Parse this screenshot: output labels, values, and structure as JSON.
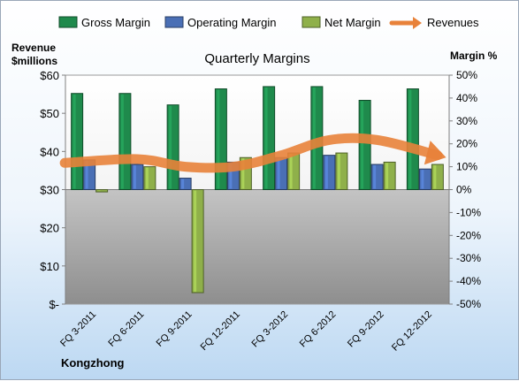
{
  "chart_data": {
    "type": "bar",
    "title": "Quarterly Margins",
    "company": "Kongzhong",
    "left_axis_label": [
      "Revenue",
      "$millions"
    ],
    "right_axis_label": "Margin %",
    "categories": [
      "FQ 3-2011",
      "FQ 6-2011",
      "FQ 9-2011",
      "FQ 12-2011",
      "FQ 3-2012",
      "FQ 6-2012",
      "FQ 9-2012",
      "FQ 12-2012"
    ],
    "left_ticks": [
      "$-",
      "$10",
      "$20",
      "$30",
      "$40",
      "$50",
      "$60"
    ],
    "right_ticks": [
      "-50%",
      "-40%",
      "-30%",
      "-20%",
      "-10%",
      "0%",
      "10%",
      "20%",
      "30%",
      "40%",
      "50%"
    ],
    "ylim_left": [
      0,
      60
    ],
    "ylim_right": [
      -50,
      50
    ],
    "series": [
      {
        "name": "Gross Margin",
        "axis": "right",
        "color": "#1f8a4c",
        "values": [
          42,
          42,
          37,
          44,
          45,
          45,
          39,
          44
        ]
      },
      {
        "name": "Operating Margin",
        "axis": "right",
        "color": "#4a6fb5",
        "values": [
          13,
          11,
          5,
          12,
          14,
          15,
          11,
          9
        ]
      },
      {
        "name": "Net Margin",
        "axis": "right",
        "color": "#8fb04a",
        "values": [
          -1,
          10,
          -45,
          14,
          16,
          16,
          12,
          11
        ]
      }
    ],
    "revenue_series": {
      "name": "Revenues",
      "axis": "left",
      "color": "#e8823a",
      "values": [
        37,
        38,
        36,
        36,
        39,
        43,
        43,
        39
      ]
    },
    "legend_position": "top",
    "grid": false
  }
}
